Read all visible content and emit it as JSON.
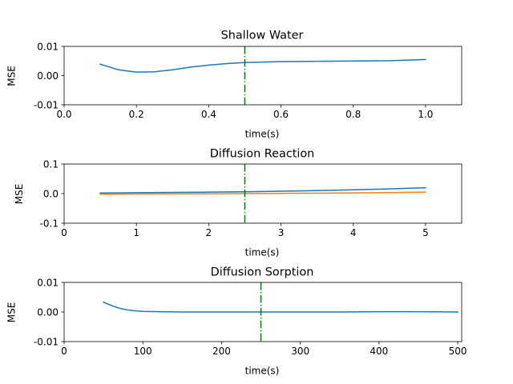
{
  "chart_data": [
    {
      "type": "line",
      "title": "Shallow Water",
      "xlabel": "time(s)",
      "ylabel": "MSE",
      "xlim": [
        0,
        1.1
      ],
      "ylim": [
        -0.01,
        0.01
      ],
      "xticks": [
        0,
        0.2,
        0.4,
        0.6,
        0.8,
        1.0
      ],
      "xtick_labels": [
        "0.0",
        "0.2",
        "0.4",
        "0.6",
        "0.8",
        "1.0"
      ],
      "yticks": [
        -0.01,
        0,
        0.01
      ],
      "ytick_labels": [
        "-0.01",
        "0.00",
        "0.01"
      ],
      "vline": {
        "x": 0.5,
        "color": "#008000",
        "style": "dash-dot"
      },
      "series": [
        {
          "color": "#1f77b4",
          "x": [
            0.1,
            0.15,
            0.2,
            0.25,
            0.3,
            0.35,
            0.4,
            0.45,
            0.5,
            0.6,
            0.7,
            0.8,
            0.9,
            1.0
          ],
          "y": [
            0.0039,
            0.002,
            0.0012,
            0.0013,
            0.002,
            0.0029,
            0.0036,
            0.0041,
            0.0045,
            0.0048,
            0.0049,
            0.005,
            0.0051,
            0.0055
          ]
        }
      ]
    },
    {
      "type": "line",
      "title": "Diffusion Reaction",
      "xlabel": "time(s)",
      "ylabel": "MSE",
      "xlim": [
        0,
        5.5
      ],
      "ylim": [
        -0.1,
        0.1
      ],
      "xticks": [
        0,
        1,
        2,
        3,
        4,
        5
      ],
      "xtick_labels": [
        "0",
        "1",
        "2",
        "3",
        "4",
        "5"
      ],
      "yticks": [
        -0.1,
        0,
        0.1
      ],
      "ytick_labels": [
        "-0.1",
        "0.0",
        "0.1"
      ],
      "vline": {
        "x": 2.5,
        "color": "#008000",
        "style": "dash-dot"
      },
      "series": [
        {
          "color": "#1f77b4",
          "x": [
            0.5,
            1,
            1.5,
            2,
            2.5,
            3,
            3.5,
            4,
            4.5,
            5
          ],
          "y": [
            0.002,
            0.003,
            0.004,
            0.005,
            0.006,
            0.008,
            0.01,
            0.013,
            0.016,
            0.02
          ]
        },
        {
          "color": "#ff7f0e",
          "x": [
            0.5,
            1,
            1.5,
            2,
            2.5,
            3,
            3.5,
            4,
            4.5,
            5
          ],
          "y": [
            -0.002,
            -0.0015,
            -0.001,
            -0.0005,
            0.0,
            0.0005,
            0.0015,
            0.0025,
            0.0035,
            0.005
          ]
        }
      ]
    },
    {
      "type": "line",
      "title": "Diffusion Sorption",
      "xlabel": "time(s)",
      "ylabel": "MSE",
      "xlim": [
        0,
        505
      ],
      "ylim": [
        -0.01,
        0.01
      ],
      "xticks": [
        0,
        100,
        200,
        300,
        400,
        500
      ],
      "xtick_labels": [
        "0",
        "100",
        "200",
        "300",
        "400",
        "500"
      ],
      "yticks": [
        -0.01,
        0,
        0.01
      ],
      "ytick_labels": [
        "-0.01",
        "0.00",
        "0.01"
      ],
      "vline": {
        "x": 250,
        "color": "#008000",
        "style": "dash-dot"
      },
      "series": [
        {
          "color": "#1f77b4",
          "x": [
            50,
            60,
            70,
            80,
            90,
            100,
            120,
            150,
            200,
            250,
            300,
            350,
            400,
            450,
            500
          ],
          "y": [
            0.0033,
            0.0022,
            0.0013,
            0.0007,
            0.0004,
            0.0002,
            0.0001,
            0.0,
            0.0,
            0.0,
            0.0,
            0.0,
            0.0001,
            0.0001,
            0.0
          ]
        }
      ]
    }
  ]
}
